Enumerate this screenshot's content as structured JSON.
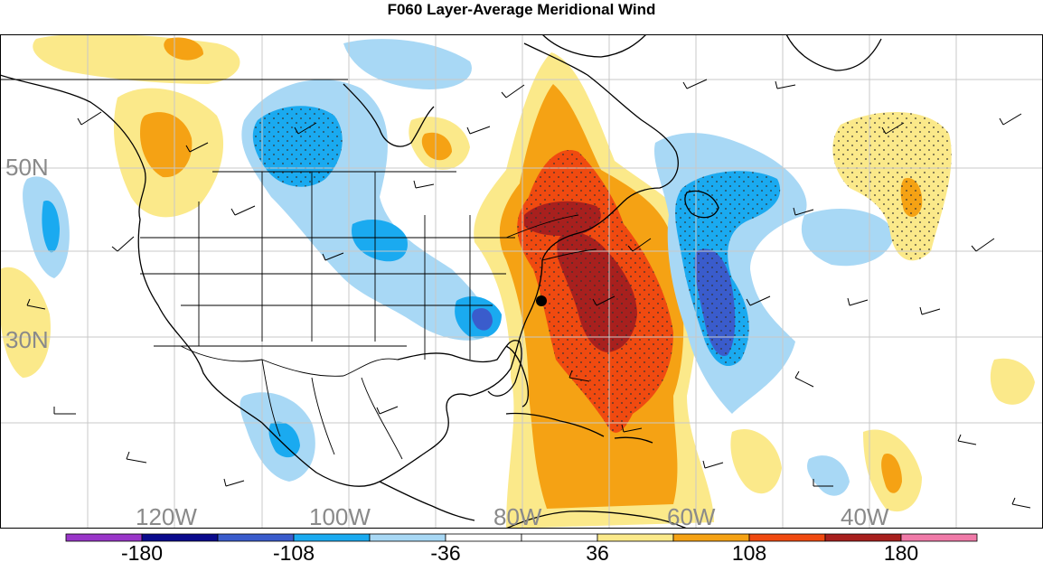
{
  "title": "F060 Layer-Average Meridional Wind",
  "map": {
    "lat_labels": [
      "50N",
      "30N"
    ],
    "lon_labels": [
      "120W",
      "100W",
      "80W",
      "60W",
      "40W"
    ],
    "label_color": "#8a8a8a",
    "land_outline_color": "#000000",
    "grid_color": "#c8c8c8"
  },
  "colorbar": {
    "tick_labels": [
      "-180",
      "-108",
      "-36",
      "36",
      "108",
      "180"
    ],
    "colors": [
      "#9a36c9",
      "#0a0a8c",
      "#3a5ccc",
      "#1aaaf0",
      "#a8d8f5",
      "#ffffff",
      "#ffffff",
      "#fbe98a",
      "#f5a214",
      "#f04a10",
      "#a8201e",
      "#f07aa8"
    ]
  },
  "shading_colors": {
    "neg_light": "#a8d8f5",
    "neg_mid": "#1aaaf0",
    "neg_strong": "#3a5ccc",
    "pos_light": "#fbe98a",
    "pos_mid": "#f5a214",
    "pos_strong": "#f04a10",
    "pos_max": "#a8201e"
  },
  "markers": [
    {
      "name": "station-dot",
      "lat": 35.2,
      "lon": -75.7
    }
  ]
}
